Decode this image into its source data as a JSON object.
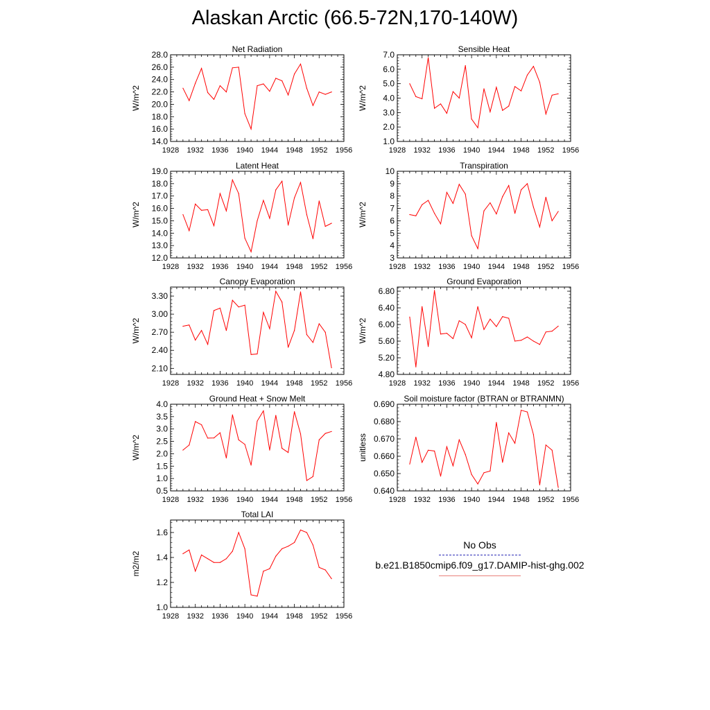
{
  "title": "Alaskan Arctic (66.5-72N,170-140W)",
  "legend": {
    "obs_label": "No Obs",
    "model_label": "b.e21.B1850cmip6.f09_g17.DAMIP-hist-ghg.002",
    "obs_color": "#2b2bb5",
    "model_color": "#e8807a"
  },
  "line_color": "#ff0000",
  "chart_data": [
    {
      "type": "line",
      "title": "Net Radiation",
      "ylabel": "W/m^2",
      "xlim": [
        1928,
        1956
      ],
      "xticks": [
        1928,
        1932,
        1936,
        1940,
        1944,
        1948,
        1952,
        1956
      ],
      "ylim": [
        14.0,
        28.0
      ],
      "yticks": [
        14.0,
        16.0,
        18.0,
        20.0,
        22.0,
        24.0,
        26.0,
        28.0
      ],
      "ytick_labels": [
        "14.0",
        "16.0",
        "18.0",
        "20.0",
        "22.0",
        "24.0",
        "26.0",
        "28.0"
      ],
      "x": [
        1930,
        1931,
        1932,
        1933,
        1934,
        1935,
        1936,
        1937,
        1938,
        1939,
        1940,
        1941,
        1942,
        1943,
        1944,
        1945,
        1946,
        1947,
        1948,
        1949,
        1950,
        1951,
        1952,
        1953,
        1954
      ],
      "y": [
        22.6,
        20.6,
        23.4,
        25.8,
        21.9,
        20.8,
        23.0,
        22.0,
        25.9,
        26.0,
        18.5,
        16.0,
        23.0,
        23.3,
        22.1,
        24.2,
        23.8,
        21.5,
        24.9,
        26.5,
        22.6,
        19.8,
        22.0,
        21.6,
        22.0
      ]
    },
    {
      "type": "line",
      "title": "Sensible Heat",
      "ylabel": "W/m^2",
      "xlim": [
        1928,
        1956
      ],
      "xticks": [
        1928,
        1932,
        1936,
        1940,
        1944,
        1948,
        1952,
        1956
      ],
      "ylim": [
        1.0,
        7.0
      ],
      "yticks": [
        1.0,
        2.0,
        3.0,
        4.0,
        5.0,
        6.0,
        7.0
      ],
      "ytick_labels": [
        "1.0",
        "2.0",
        "3.0",
        "4.0",
        "5.0",
        "6.0",
        "7.0"
      ],
      "x": [
        1930,
        1931,
        1932,
        1933,
        1934,
        1935,
        1936,
        1937,
        1938,
        1939,
        1940,
        1941,
        1942,
        1943,
        1944,
        1945,
        1946,
        1947,
        1948,
        1949,
        1950,
        1951,
        1952,
        1953,
        1954
      ],
      "y": [
        5.0,
        4.1,
        3.95,
        6.8,
        3.3,
        3.6,
        2.95,
        4.45,
        4.0,
        6.25,
        2.55,
        1.95,
        4.65,
        3.05,
        4.75,
        3.15,
        3.45,
        4.8,
        4.5,
        5.6,
        6.2,
        5.1,
        2.9,
        4.2,
        4.3
      ]
    },
    {
      "type": "line",
      "title": "Latent Heat",
      "ylabel": "W/m^2",
      "xlim": [
        1928,
        1956
      ],
      "xticks": [
        1928,
        1932,
        1936,
        1940,
        1944,
        1948,
        1952,
        1956
      ],
      "ylim": [
        12.0,
        19.0
      ],
      "yticks": [
        12.0,
        13.0,
        14.0,
        15.0,
        16.0,
        17.0,
        18.0,
        19.0
      ],
      "ytick_labels": [
        "12.0",
        "13.0",
        "14.0",
        "15.0",
        "16.0",
        "17.0",
        "18.0",
        "19.0"
      ],
      "x": [
        1930,
        1931,
        1932,
        1933,
        1934,
        1935,
        1936,
        1937,
        1938,
        1939,
        1940,
        1941,
        1942,
        1943,
        1944,
        1945,
        1946,
        1947,
        1948,
        1949,
        1950,
        1951,
        1952,
        1953,
        1954
      ],
      "y": [
        15.5,
        14.2,
        16.35,
        15.85,
        15.9,
        14.6,
        17.2,
        15.8,
        18.3,
        17.2,
        13.6,
        12.5,
        15.0,
        16.65,
        15.2,
        17.5,
        18.2,
        14.65,
        16.85,
        18.1,
        15.5,
        13.55,
        16.6,
        14.55,
        14.8
      ]
    },
    {
      "type": "line",
      "title": "Transpiration",
      "ylabel": "W/m^2",
      "xlim": [
        1928,
        1956
      ],
      "xticks": [
        1928,
        1932,
        1936,
        1940,
        1944,
        1948,
        1952,
        1956
      ],
      "ylim": [
        3,
        10
      ],
      "yticks": [
        3,
        4,
        5,
        6,
        7,
        8,
        9,
        10
      ],
      "ytick_labels": [
        "3",
        "4",
        "5",
        "6",
        "7",
        "8",
        "9",
        "10"
      ],
      "x": [
        1930,
        1931,
        1932,
        1933,
        1934,
        1935,
        1936,
        1937,
        1938,
        1939,
        1940,
        1941,
        1942,
        1943,
        1944,
        1945,
        1946,
        1947,
        1948,
        1949,
        1950,
        1951,
        1952,
        1953,
        1954
      ],
      "y": [
        6.5,
        6.4,
        7.3,
        7.65,
        6.6,
        5.75,
        8.3,
        7.4,
        8.95,
        8.15,
        4.8,
        3.75,
        6.8,
        7.45,
        6.55,
        7.95,
        8.85,
        6.6,
        8.5,
        9.0,
        7.1,
        5.5,
        7.9,
        6.0,
        6.75
      ]
    },
    {
      "type": "line",
      "title": "Canopy Evaporation",
      "ylabel": "W/m^2",
      "xlim": [
        1928,
        1956
      ],
      "xticks": [
        1928,
        1932,
        1936,
        1940,
        1944,
        1948,
        1952,
        1956
      ],
      "ylim": [
        2.0,
        3.45
      ],
      "yticks": [
        2.1,
        2.4,
        2.7,
        3.0,
        3.3
      ],
      "ytick_labels": [
        "2.10",
        "2.40",
        "2.70",
        "3.00",
        "3.30"
      ],
      "x": [
        1930,
        1931,
        1932,
        1933,
        1934,
        1935,
        1936,
        1937,
        1938,
        1939,
        1940,
        1941,
        1942,
        1943,
        1944,
        1945,
        1946,
        1947,
        1948,
        1949,
        1950,
        1951,
        1952,
        1953,
        1954
      ],
      "y": [
        2.8,
        2.82,
        2.57,
        2.73,
        2.5,
        3.06,
        3.1,
        2.73,
        3.23,
        3.12,
        3.15,
        2.33,
        2.34,
        3.03,
        2.76,
        3.38,
        3.2,
        2.45,
        2.73,
        3.37,
        2.66,
        2.53,
        2.84,
        2.7,
        2.11
      ]
    },
    {
      "type": "line",
      "title": "Ground Evaporation",
      "ylabel": "W/m^2",
      "xlim": [
        1928,
        1956
      ],
      "xticks": [
        1928,
        1932,
        1936,
        1940,
        1944,
        1948,
        1952,
        1956
      ],
      "ylim": [
        4.8,
        6.9
      ],
      "yticks": [
        4.8,
        5.2,
        5.6,
        6.0,
        6.4,
        6.8
      ],
      "ytick_labels": [
        "4.80",
        "5.20",
        "5.60",
        "6.00",
        "6.40",
        "6.80"
      ],
      "x": [
        1930,
        1931,
        1932,
        1933,
        1934,
        1935,
        1936,
        1937,
        1938,
        1939,
        1940,
        1941,
        1942,
        1943,
        1944,
        1945,
        1946,
        1947,
        1948,
        1949,
        1950,
        1951,
        1952,
        1953,
        1954
      ],
      "y": [
        6.18,
        4.98,
        6.43,
        5.47,
        6.82,
        5.77,
        5.79,
        5.66,
        6.09,
        6.0,
        5.68,
        6.43,
        5.88,
        6.13,
        5.95,
        6.19,
        6.15,
        5.6,
        5.62,
        5.7,
        5.6,
        5.52,
        5.82,
        5.84,
        5.96
      ]
    },
    {
      "type": "line",
      "title": "Ground Heat + Snow Melt",
      "ylabel": "W/m^2",
      "xlim": [
        1928,
        1956
      ],
      "xticks": [
        1928,
        1932,
        1936,
        1940,
        1944,
        1948,
        1952,
        1956
      ],
      "ylim": [
        0.5,
        4.0
      ],
      "yticks": [
        0.5,
        1.0,
        1.5,
        2.0,
        2.5,
        3.0,
        3.5,
        4.0
      ],
      "ytick_labels": [
        "0.5",
        "1.0",
        "1.5",
        "2.0",
        "2.5",
        "3.0",
        "3.5",
        "4.0"
      ],
      "x": [
        1930,
        1931,
        1932,
        1933,
        1934,
        1935,
        1936,
        1937,
        1938,
        1939,
        1940,
        1941,
        1942,
        1943,
        1944,
        1945,
        1946,
        1947,
        1948,
        1949,
        1950,
        1951,
        1952,
        1953,
        1954
      ],
      "y": [
        2.15,
        2.35,
        3.3,
        3.17,
        2.63,
        2.64,
        2.85,
        1.83,
        3.57,
        2.56,
        2.38,
        1.54,
        3.32,
        3.73,
        2.15,
        3.55,
        2.22,
        2.05,
        3.7,
        2.8,
        0.92,
        1.08,
        2.56,
        2.82,
        2.9
      ]
    },
    {
      "type": "line",
      "title": "Soil moisture factor (BTRAN or BTRANMN)",
      "ylabel": "unitless",
      "xlim": [
        1928,
        1956
      ],
      "xticks": [
        1928,
        1932,
        1936,
        1940,
        1944,
        1948,
        1952,
        1956
      ],
      "ylim": [
        0.64,
        0.69
      ],
      "yticks": [
        0.64,
        0.65,
        0.66,
        0.67,
        0.68,
        0.69
      ],
      "ytick_labels": [
        "0.640",
        "0.650",
        "0.660",
        "0.670",
        "0.680",
        "0.690"
      ],
      "x": [
        1930,
        1931,
        1932,
        1933,
        1934,
        1935,
        1936,
        1937,
        1938,
        1939,
        1940,
        1941,
        1942,
        1943,
        1944,
        1945,
        1946,
        1947,
        1948,
        1949,
        1950,
        1951,
        1952,
        1953,
        1954
      ],
      "y": [
        0.6555,
        0.671,
        0.6565,
        0.6635,
        0.663,
        0.6485,
        0.6655,
        0.6545,
        0.6695,
        0.661,
        0.6495,
        0.644,
        0.6505,
        0.6515,
        0.6795,
        0.6565,
        0.6735,
        0.6675,
        0.6865,
        0.6855,
        0.6725,
        0.6435,
        0.6665,
        0.6635,
        0.642
      ]
    },
    {
      "type": "line",
      "title": "Total LAI",
      "ylabel": "m2/m2",
      "xlim": [
        1928,
        1956
      ],
      "xticks": [
        1928,
        1932,
        1936,
        1940,
        1944,
        1948,
        1952,
        1956
      ],
      "ylim": [
        1.0,
        1.7
      ],
      "yticks": [
        1.0,
        1.2,
        1.4,
        1.6
      ],
      "ytick_labels": [
        "1.0",
        "1.2",
        "1.4",
        "1.6"
      ],
      "x": [
        1930,
        1931,
        1932,
        1933,
        1934,
        1935,
        1936,
        1937,
        1938,
        1939,
        1940,
        1941,
        1942,
        1943,
        1944,
        1945,
        1946,
        1947,
        1948,
        1949,
        1950,
        1951,
        1952,
        1953,
        1954
      ],
      "y": [
        1.43,
        1.46,
        1.29,
        1.42,
        1.39,
        1.36,
        1.36,
        1.39,
        1.45,
        1.6,
        1.47,
        1.1,
        1.09,
        1.29,
        1.31,
        1.41,
        1.47,
        1.49,
        1.52,
        1.62,
        1.6,
        1.5,
        1.32,
        1.3,
        1.23
      ]
    }
  ]
}
